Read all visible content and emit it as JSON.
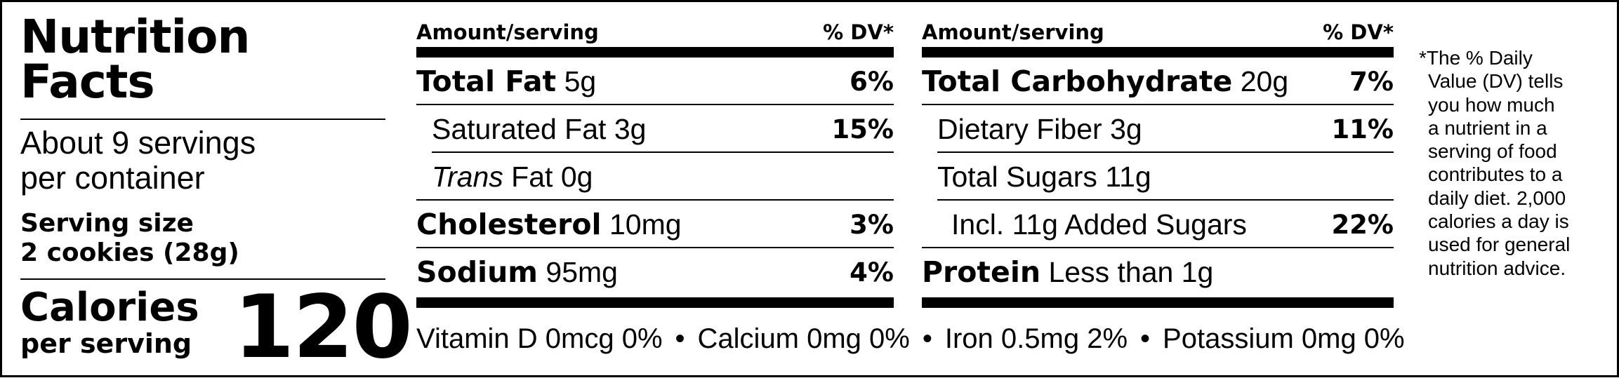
{
  "label": {
    "title_line1": "Nutrition",
    "title_line2": "Facts",
    "servings_line1": "About 9 servings",
    "servings_line2": "per container",
    "serving_size_label": "Serving size",
    "serving_size_value": "2 cookies (28g)",
    "calories_label": "Calories",
    "calories_sub": "per serving",
    "calories_value": "120"
  },
  "table_left": {
    "amount_header": "Amount/serving",
    "dv_header": "% DV*",
    "rows": [
      {
        "name": "Total Fat",
        "amount": "5g",
        "dv": "6%"
      },
      {
        "name": "Saturated Fat",
        "amount": "3g",
        "dv": "15%"
      },
      {
        "name_italic": "Trans",
        "name": "Fat",
        "amount": "0g",
        "dv": ""
      },
      {
        "name": "Cholesterol",
        "amount": "10mg",
        "dv": "3%"
      },
      {
        "name": "Sodium",
        "amount": "95mg",
        "dv": "4%"
      }
    ]
  },
  "table_right": {
    "amount_header": "Amount/serving",
    "dv_header": "% DV*",
    "rows": [
      {
        "name": "Total Carbohydrate",
        "amount": "20g",
        "dv": "7%"
      },
      {
        "name": "Dietary Fiber",
        "amount": "3g",
        "dv": "11%"
      },
      {
        "name": "Total Sugars",
        "amount": "11g",
        "dv": ""
      },
      {
        "name": "Incl. 11g Added Sugars",
        "amount": "",
        "dv": "22%"
      },
      {
        "name": "Protein",
        "amount": "Less than 1g",
        "dv": ""
      }
    ]
  },
  "vitamins": [
    "Vitamin D 0mcg 0%",
    "Calcium 0mg 0%",
    "Iron 0.5mg 2%",
    "Potassium 0mg 0%"
  ],
  "vitamin_separator": "•",
  "footnote_lines": [
    "*The % Daily",
    "Value (DV) tells",
    "you how much",
    "a nutrient in a",
    "serving of food",
    "contributes to a",
    "daily diet. 2,000",
    "calories a day is",
    "used for general",
    "nutrition advice."
  ]
}
